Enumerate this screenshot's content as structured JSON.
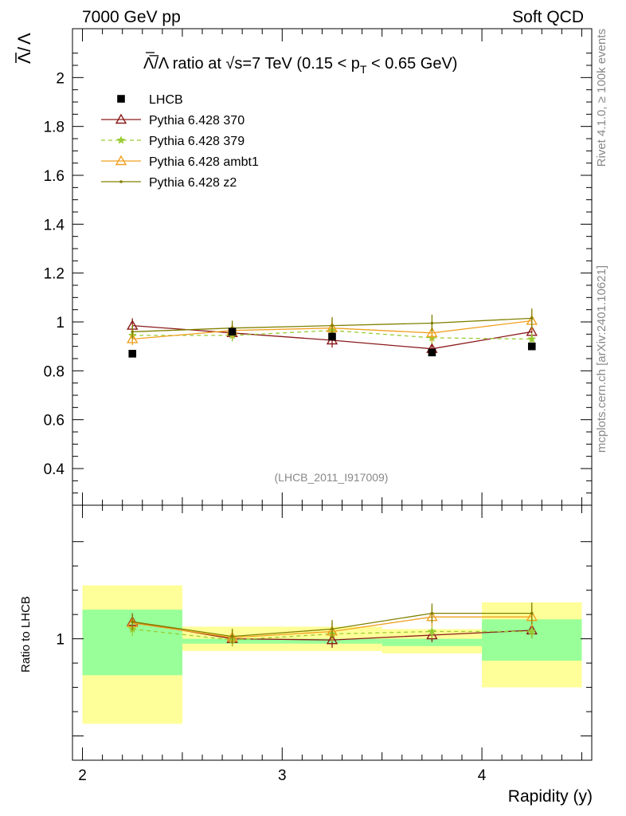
{
  "header": {
    "left": "7000 GeV pp",
    "right": "Soft QCD"
  },
  "side_labels": {
    "top": "Rivet 4.1.0, ≥ 100k events",
    "bottom": "mcplots.cern.ch [arXiv:2401.10621]"
  },
  "chart_data": {
    "type": "line",
    "title": "Λ̅/Λ ratio at √s=7 TeV (0.15 < pT < 0.65 GeV)",
    "title_parts": {
      "main": "Λ̅/Λ ratio at √s=7 TeV (0.15 < p",
      "sub": "T",
      "tail": " < 0.65 GeV)"
    },
    "ylabel": "Λ̅/Λ",
    "ylabel_parts": {
      "num": "Λ",
      "den": "Λ"
    },
    "xlabel": "Rapidity (y)",
    "ratio_ylabel": "Ratio to LHCB",
    "analysis_id": "(LHCB_2011_I917009)",
    "xlim": [
      1.95,
      4.55
    ],
    "ylim": [
      0.25,
      2.2
    ],
    "ratio_ylim": [
      0.5,
      1.55
    ],
    "xticks": [
      2,
      3,
      4
    ],
    "xtick_labels": [
      "2",
      "3",
      "4"
    ],
    "yticks": [
      0.4,
      0.6,
      0.8,
      1.0,
      1.2,
      1.4,
      1.6,
      1.8,
      2.0
    ],
    "ytick_labels": [
      "0.4",
      "0.6",
      "0.8",
      "1",
      "1.2",
      "1.4",
      "1.6",
      "1.8",
      "2"
    ],
    "ratio_yticks": [
      1.0
    ],
    "ratio_ytick_labels": [
      "1"
    ],
    "x": [
      2.25,
      2.75,
      3.25,
      3.75,
      4.25
    ],
    "bin_edges": [
      2.0,
      2.5,
      3.0,
      3.5,
      4.0,
      4.5
    ],
    "data": {
      "name": "LHCB",
      "values": [
        0.87,
        0.96,
        0.94,
        0.875,
        0.9
      ],
      "ratio_band_green": [
        [
          0.85,
          1.12
        ],
        [
          0.98,
          1.0
        ],
        [
          0.98,
          1.0
        ],
        [
          0.97,
          1.0
        ],
        [
          0.91,
          1.08
        ]
      ],
      "ratio_band_yellow": [
        [
          0.65,
          1.22
        ],
        [
          0.95,
          1.05
        ],
        [
          0.95,
          1.05
        ],
        [
          0.94,
          1.04
        ],
        [
          0.8,
          1.15
        ]
      ]
    },
    "series": [
      {
        "name": "Pythia 6.428 370",
        "color": "#8b1a1a",
        "marker": "triangle-open",
        "dashed": false,
        "values": [
          0.985,
          0.955,
          0.925,
          0.89,
          0.96
        ],
        "errors": [
          0.03,
          0.03,
          0.03,
          0.025,
          0.03
        ],
        "ratio": [
          1.07,
          1.0,
          0.995,
          1.015,
          1.035
        ]
      },
      {
        "name": "Pythia 6.428 379",
        "color": "#99cc33",
        "marker": "star",
        "dashed": true,
        "values": [
          0.945,
          0.945,
          0.965,
          0.935,
          0.93
        ],
        "errors": [
          0.025,
          0.025,
          0.03,
          0.025,
          0.025
        ],
        "ratio": [
          1.04,
          0.995,
          1.02,
          1.03,
          1.03
        ]
      },
      {
        "name": "Pythia 6.428 ambt1",
        "color": "#f0a020",
        "marker": "triangle-open",
        "dashed": false,
        "values": [
          0.93,
          0.965,
          0.975,
          0.955,
          1.005
        ],
        "errors": [
          0.025,
          0.03,
          0.035,
          0.035,
          0.04
        ],
        "ratio": [
          1.065,
          1.005,
          1.03,
          1.09,
          1.09
        ]
      },
      {
        "name": "Pythia 6.428 z2",
        "color": "#808000",
        "marker": "dot",
        "dashed": false,
        "values": [
          0.96,
          0.975,
          0.985,
          0.995,
          1.015
        ],
        "errors": [
          0.03,
          0.03,
          0.035,
          0.035,
          0.04
        ],
        "ratio": [
          1.07,
          1.01,
          1.04,
          1.105,
          1.105
        ]
      }
    ]
  }
}
